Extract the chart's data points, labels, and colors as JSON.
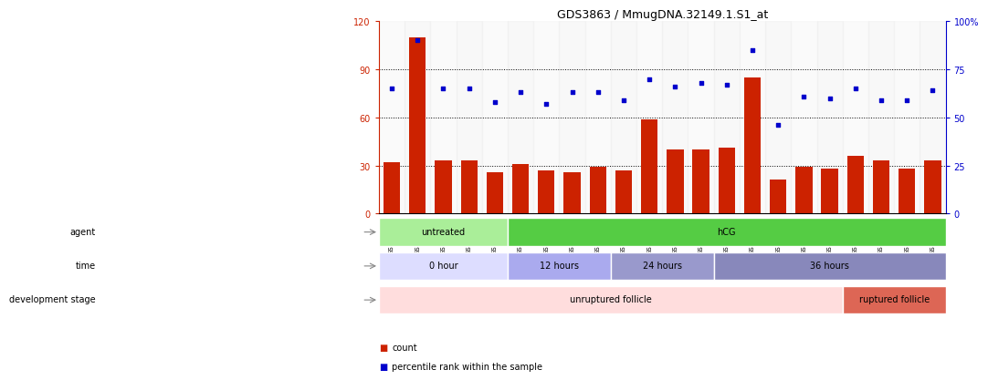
{
  "title": "GDS3863 / MmugDNA.32149.1.S1_at",
  "samples": [
    "GSM563219",
    "GSM563220",
    "GSM563221",
    "GSM563222",
    "GSM563223",
    "GSM563224",
    "GSM563225",
    "GSM563226",
    "GSM563227",
    "GSM563228",
    "GSM563229",
    "GSM563230",
    "GSM563231",
    "GSM563232",
    "GSM563233",
    "GSM563234",
    "GSM563235",
    "GSM563236",
    "GSM563237",
    "GSM563238",
    "GSM563239",
    "GSM563240"
  ],
  "counts": [
    32,
    110,
    33,
    33,
    26,
    31,
    27,
    26,
    29,
    27,
    59,
    40,
    40,
    41,
    85,
    21,
    29,
    28,
    36,
    33,
    28,
    33
  ],
  "percentiles": [
    65,
    90,
    65,
    65,
    58,
    63,
    57,
    63,
    63,
    59,
    70,
    66,
    68,
    67,
    85,
    46,
    61,
    60,
    65,
    59,
    59,
    64
  ],
  "bar_color": "#cc2200",
  "dot_color": "#0000cc",
  "left_ylim": [
    0,
    120
  ],
  "right_ylim": [
    0,
    100
  ],
  "left_yticks": [
    0,
    30,
    60,
    90,
    120
  ],
  "right_yticks": [
    0,
    25,
    50,
    75,
    100
  ],
  "left_ytick_labels": [
    "0",
    "30",
    "60",
    "90",
    "120"
  ],
  "right_ytick_labels": [
    "0",
    "25",
    "50",
    "75",
    "100%"
  ],
  "hlines": [
    30,
    60,
    90
  ],
  "agent_groups": [
    {
      "label": "untreated",
      "start": 0,
      "end": 5,
      "color": "#aaee99"
    },
    {
      "label": "hCG",
      "start": 5,
      "end": 22,
      "color": "#55cc44"
    }
  ],
  "time_groups": [
    {
      "label": "0 hour",
      "start": 0,
      "end": 5,
      "color": "#ddddff"
    },
    {
      "label": "12 hours",
      "start": 5,
      "end": 9,
      "color": "#aaaaee"
    },
    {
      "label": "24 hours",
      "start": 9,
      "end": 13,
      "color": "#9999cc"
    },
    {
      "label": "36 hours",
      "start": 13,
      "end": 22,
      "color": "#8888bb"
    }
  ],
  "dev_groups": [
    {
      "label": "unruptured follicle",
      "start": 0,
      "end": 18,
      "color": "#ffdddd"
    },
    {
      "label": "ruptured follicle",
      "start": 18,
      "end": 22,
      "color": "#dd6655"
    }
  ],
  "bg_color": "#ffffff"
}
